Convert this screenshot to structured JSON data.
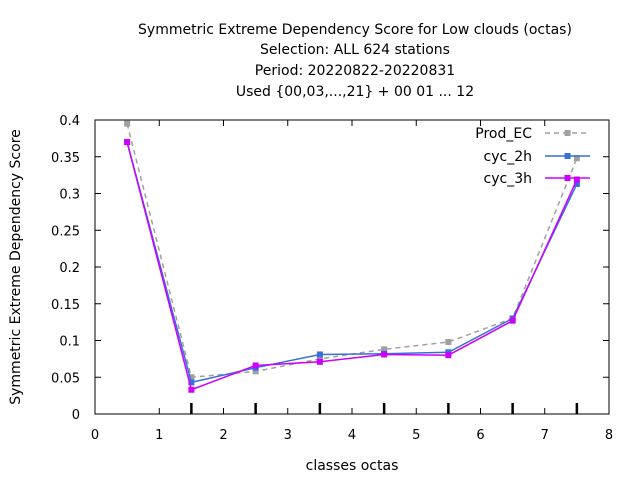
{
  "chart_data": {
    "type": "line",
    "title_lines": [
      "Symmetric Extreme Dependency Score  for Low clouds (octas)",
      "Selection: ALL     624 stations",
      "Period: 20220822-20220831",
      "Used {00,03,...,21} + 00 01 ... 12"
    ],
    "xlabel": "classes octas",
    "ylabel": "Symmetric Extreme Dependency Score",
    "xlim": [
      0,
      8
    ],
    "ylim": [
      0,
      0.4
    ],
    "x_ticks": [
      "0",
      "1",
      "2",
      "3",
      "4",
      "5",
      "6",
      "7",
      "8"
    ],
    "y_ticks": [
      "0",
      "0.05",
      "0.1",
      "0.15",
      "0.2",
      "0.25",
      "0.3",
      "0.35",
      "0.4"
    ],
    "legend_position": "top-right",
    "series": [
      {
        "name": "Prod_EC",
        "color": "#a0a0a0",
        "dash": true,
        "x": [
          0.5,
          1.5,
          2.5,
          3.5,
          4.5,
          5.5,
          6.5,
          7.5
        ],
        "y": [
          0.395,
          0.05,
          0.058,
          0.075,
          0.088,
          0.098,
          0.13,
          0.348
        ]
      },
      {
        "name": "cyc_2h",
        "color": "#3a6fd8",
        "dash": false,
        "x": [
          0.5,
          1.5,
          2.5,
          3.5,
          4.5,
          5.5,
          6.5,
          7.5
        ],
        "y": [
          0.37,
          0.043,
          0.063,
          0.081,
          0.082,
          0.084,
          0.13,
          0.313
        ]
      },
      {
        "name": "cyc_3h",
        "color": "#cc00ff",
        "dash": false,
        "x": [
          0.5,
          1.5,
          2.5,
          3.5,
          4.5,
          5.5,
          6.5,
          7.5
        ],
        "y": [
          0.37,
          0.033,
          0.066,
          0.071,
          0.081,
          0.08,
          0.127,
          0.319
        ]
      }
    ]
  }
}
